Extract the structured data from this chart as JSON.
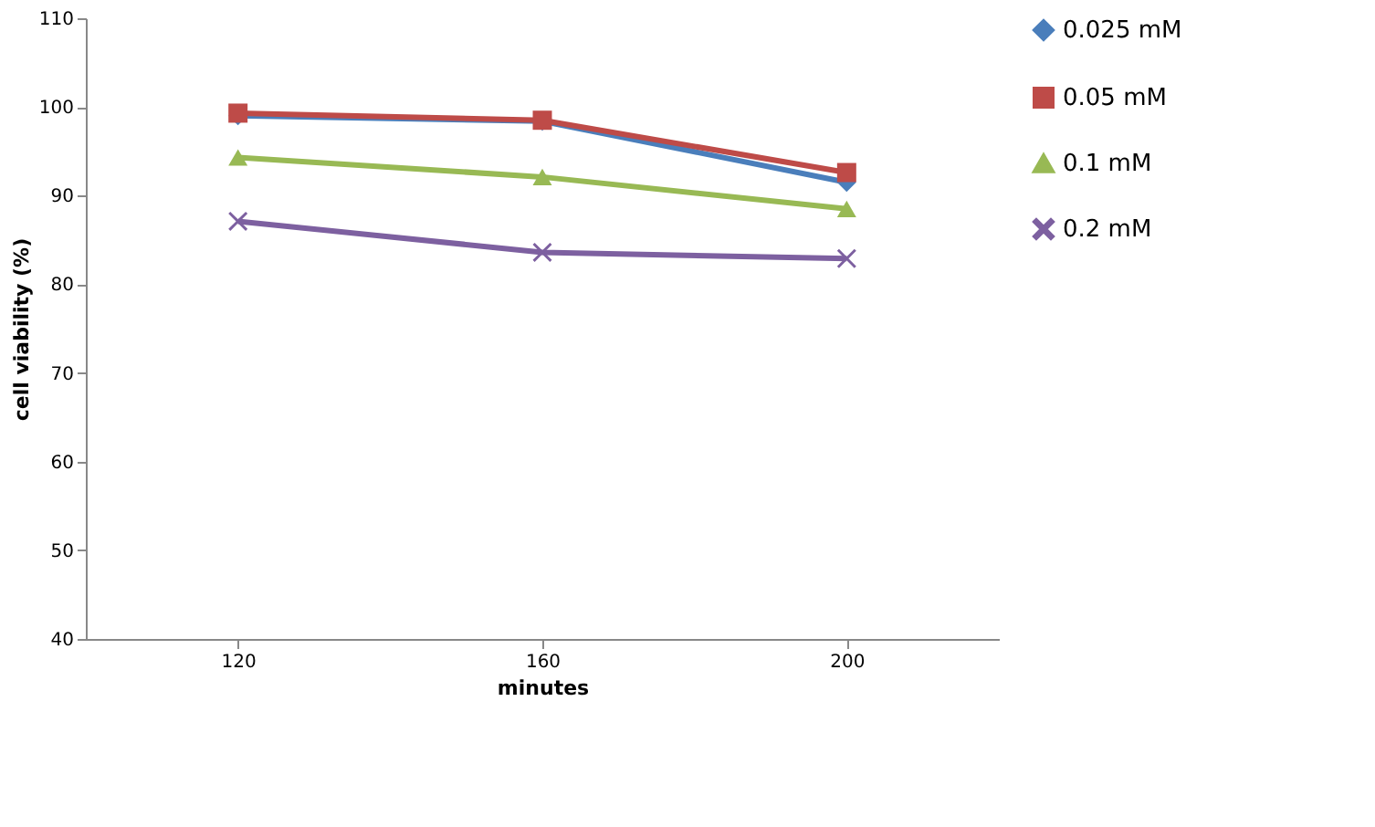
{
  "chart_data": {
    "type": "line",
    "xlabel": "minutes",
    "ylabel": "cell viability (%)",
    "categories": [
      "120",
      "160",
      "200"
    ],
    "ylim": [
      40,
      110
    ],
    "yticks": [
      40,
      50,
      60,
      70,
      80,
      90,
      100,
      110
    ],
    "grid": false,
    "legend": "right",
    "series": [
      {
        "name": "0.025 mM",
        "color": "#4a7ebb",
        "marker": "diamond",
        "values": [
          99.0,
          98.4,
          91.5
        ]
      },
      {
        "name": "0.05 mM",
        "color": "#be4b48",
        "marker": "square",
        "values": [
          99.3,
          98.5,
          92.6
        ]
      },
      {
        "name": "0.1 mM",
        "color": "#98b954",
        "marker": "triangle",
        "values": [
          94.3,
          92.1,
          88.5
        ]
      },
      {
        "name": "0.2 mM",
        "color": "#7d60a0",
        "marker": "cross",
        "values": [
          87.1,
          83.6,
          82.9
        ]
      }
    ]
  }
}
